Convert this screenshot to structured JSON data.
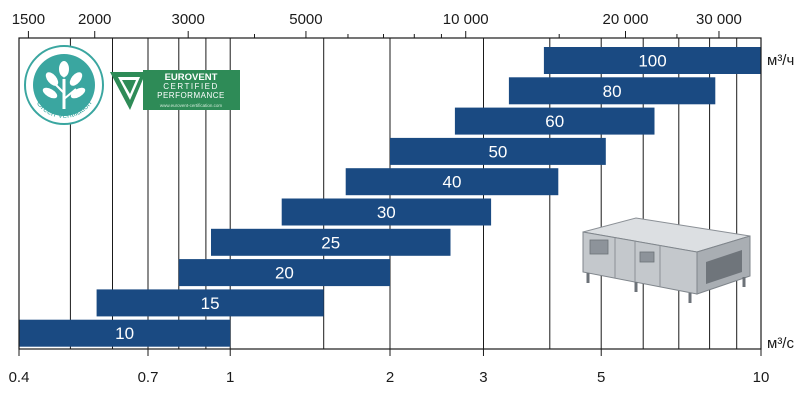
{
  "chart_data": {
    "type": "bar",
    "orientation": "horizontal-range",
    "x_scale": "log",
    "xlim": [
      0.4,
      10
    ],
    "top_axis": {
      "unit": "м³/ч",
      "ticks": [
        {
          "value": 1500,
          "label": "1500"
        },
        {
          "value": 2000,
          "label": "2000"
        },
        {
          "value": 3000,
          "label": "3000"
        },
        {
          "value": 5000,
          "label": "5000"
        },
        {
          "value": 10000,
          "label": "10 000"
        },
        {
          "value": 20000,
          "label": "20 000"
        },
        {
          "value": 30000,
          "label": "30 000"
        }
      ],
      "minor_ticks": [
        4000,
        6000,
        7000,
        8000,
        9000,
        15000,
        25000
      ]
    },
    "bottom_axis": {
      "unit": "м³/с",
      "ticks": [
        {
          "value": 0.4,
          "label": "0.4"
        },
        {
          "value": 0.7,
          "label": "0.7"
        },
        {
          "value": 1,
          "label": "1"
        },
        {
          "value": 2,
          "label": "2"
        },
        {
          "value": 3,
          "label": "3"
        },
        {
          "value": 5,
          "label": "5"
        },
        {
          "value": 10,
          "label": "10"
        }
      ]
    },
    "gridlines": [
      0.5,
      0.6,
      0.7,
      0.8,
      0.9,
      1,
      1.5,
      2,
      3,
      4,
      5,
      6,
      7,
      8,
      9,
      10
    ],
    "grid": true,
    "bar_color": "#1a4a82",
    "series": [
      {
        "label": "10",
        "min": 0.4,
        "max": 1.0
      },
      {
        "label": "15",
        "min": 0.56,
        "max": 1.5
      },
      {
        "label": "20",
        "min": 0.8,
        "max": 2.0
      },
      {
        "label": "25",
        "min": 0.92,
        "max": 2.6
      },
      {
        "label": "30",
        "min": 1.25,
        "max": 3.1
      },
      {
        "label": "40",
        "min": 1.65,
        "max": 4.15
      },
      {
        "label": "50",
        "min": 2.0,
        "max": 5.1
      },
      {
        "label": "60",
        "min": 2.65,
        "max": 6.3
      },
      {
        "label": "80",
        "min": 3.35,
        "max": 8.2
      },
      {
        "label": "100",
        "min": 3.9,
        "max": 10.0
      }
    ]
  },
  "logos": {
    "green_ventilation": {
      "text": "Green Ventilation",
      "color": "#3aa6a0"
    },
    "eurovent": {
      "line1": "EUROVENT",
      "line2": "CERTIFIED",
      "line3": "PERFORMANCE",
      "url": "www.eurovent-certification.com",
      "color": "#2e8b57"
    }
  },
  "product_image": {
    "name": "air-handling-unit"
  }
}
